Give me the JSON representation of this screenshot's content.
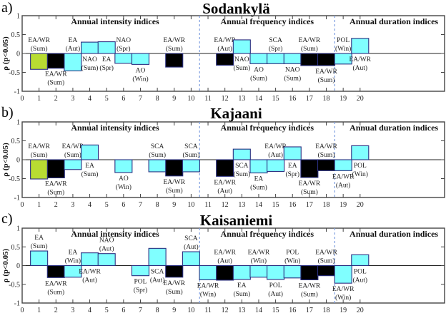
{
  "chart_data": [
    {
      "type": "bar",
      "panel_letter": "a)",
      "title": "Sodankylä",
      "xlabel": "",
      "ylabel": "ρ (p<0.05)",
      "xlim": [
        0,
        25
      ],
      "ylim": [
        -1,
        1
      ],
      "x_ticks": [
        0,
        1,
        2,
        3,
        4,
        5,
        6,
        7,
        8,
        9,
        10,
        11,
        12,
        13,
        14,
        15,
        16,
        17,
        18,
        19,
        20
      ],
      "y_ticks": [
        -1,
        -0.5,
        0,
        0.5,
        1
      ],
      "y_tick_labels": [
        "-1",
        "-0.5",
        "0",
        "0.5",
        "1"
      ],
      "section_dividers": [
        10.5,
        18.5
      ],
      "sections": [
        {
          "label": "Annual intensity indices",
          "center": 5.5
        },
        {
          "label": "Annual frequency indices",
          "center": 14.5
        },
        {
          "label": "Annual duration indices",
          "center": 22
        }
      ],
      "bars": [
        {
          "x": 1,
          "value": -0.42,
          "color": "green",
          "label": [
            "EA/WR",
            "(Sum)"
          ],
          "label_side": "above"
        },
        {
          "x": 2,
          "value": -0.39,
          "color": "black",
          "label": [
            "EA/WR",
            "(Sum)"
          ],
          "label_side": "below"
        },
        {
          "x": 3,
          "value": -0.46,
          "color": "cyan",
          "label": [
            "EA",
            "(Aut)"
          ],
          "label_side": "above"
        },
        {
          "x": 4,
          "value": 0.3,
          "color": "cyan",
          "label": [
            "NAO",
            "(Sum)"
          ],
          "label_side": "below"
        },
        {
          "x": 5,
          "value": 0.31,
          "color": "cyan",
          "label": [
            "EA",
            "(Spr)"
          ],
          "label_side": "below"
        },
        {
          "x": 6,
          "value": -0.26,
          "color": "cyan",
          "label": [
            "NAO",
            "(Spr)"
          ],
          "label_side": "above"
        },
        {
          "x": 7,
          "value": -0.29,
          "color": "cyan",
          "label": [
            "AO",
            "(Win)"
          ],
          "label_side": "below"
        },
        {
          "x": 9,
          "value": -0.36,
          "color": "black",
          "label": [
            "EA/WR",
            "(Sum)"
          ],
          "label_side": "above"
        },
        {
          "x": 12,
          "value": -0.31,
          "color": "black",
          "label": [
            "EA/WR",
            "(Aut)"
          ],
          "label_side": "above"
        },
        {
          "x": 13,
          "value": 0.36,
          "color": "cyan",
          "label": [
            "NAO",
            "(Sum)"
          ],
          "label_side": "below"
        },
        {
          "x": 14,
          "value": -0.27,
          "color": "cyan",
          "label": [
            "AO",
            "(Sum)"
          ],
          "label_side": "below"
        },
        {
          "x": 15,
          "value": -0.27,
          "color": "cyan",
          "label": [
            "SCA",
            "(Spr)"
          ],
          "label_side": "above"
        },
        {
          "x": 16,
          "value": -0.27,
          "color": "cyan",
          "label": [
            "NAO",
            "(Sum)"
          ],
          "label_side": "below"
        },
        {
          "x": 17,
          "value": -0.32,
          "color": "black",
          "label": [
            "EA/WR",
            "(Sum)"
          ],
          "label_side": "above"
        },
        {
          "x": 18,
          "value": -0.32,
          "color": "black",
          "label": [
            "EA/WR",
            "(Sum)"
          ],
          "label_side": "below"
        },
        {
          "x": 19,
          "value": -0.28,
          "color": "cyan",
          "label": [
            "POL",
            "(Win)"
          ],
          "label_side": "above"
        },
        {
          "x": 20,
          "value": 0.4,
          "color": "cyan",
          "label": [
            "EA/WR",
            "(Aut)"
          ],
          "label_side": "below"
        }
      ]
    },
    {
      "type": "bar",
      "panel_letter": "b)",
      "title": "Kajaani",
      "xlabel": "",
      "ylabel": "ρ (p<0.05)",
      "xlim": [
        0,
        25
      ],
      "ylim": [
        -1,
        1
      ],
      "x_ticks": [
        0,
        1,
        2,
        3,
        4,
        5,
        6,
        7,
        8,
        9,
        10,
        11,
        12,
        13,
        14,
        15,
        16,
        17,
        18,
        19,
        20
      ],
      "y_ticks": [
        -1,
        -0.5,
        0,
        0.5,
        1
      ],
      "y_tick_labels": [
        "-1",
        "-0.5",
        "0",
        "0.5",
        "1"
      ],
      "section_dividers": [
        10.5,
        18.5
      ],
      "sections": [
        {
          "label": "Annual intensity indices",
          "center": 5.5
        },
        {
          "label": "Annual frequency indices",
          "center": 14.5
        },
        {
          "label": "Annual duration indices",
          "center": 22
        }
      ],
      "bars": [
        {
          "x": 1,
          "value": -0.51,
          "color": "green",
          "label": [
            "EA/WR",
            "(Sum)"
          ],
          "label_side": "above"
        },
        {
          "x": 2,
          "value": -0.48,
          "color": "black",
          "label": [
            "EA/WR",
            "(Sum)"
          ],
          "label_side": "below"
        },
        {
          "x": 3,
          "value": -0.26,
          "color": "cyan",
          "label": [
            "EA/WR",
            "(Sum)"
          ],
          "label_side": "above"
        },
        {
          "x": 4,
          "value": 0.39,
          "color": "cyan",
          "label": [
            "EA",
            "(Sum)"
          ],
          "label_side": "below"
        },
        {
          "x": 6,
          "value": -0.34,
          "color": "cyan",
          "label": [
            "AO",
            "(Win)"
          ],
          "label_side": "below"
        },
        {
          "x": 8,
          "value": -0.32,
          "color": "cyan",
          "label": [
            "SCA",
            "(Sum)"
          ],
          "label_side": "above"
        },
        {
          "x": 9,
          "value": -0.43,
          "color": "black",
          "label": [
            "EA/WR",
            "(Sum)"
          ],
          "label_side": "below"
        },
        {
          "x": 10,
          "value": -0.32,
          "color": "cyan",
          "label": [
            "SCA",
            "(Sum)"
          ],
          "label_side": "above"
        },
        {
          "x": 12,
          "value": -0.44,
          "color": "black",
          "label": [
            "EA/WR",
            "(Aut)"
          ],
          "label_side": "below"
        },
        {
          "x": 13,
          "value": 0.28,
          "color": "cyan",
          "label": [
            "SCA",
            "(Sum)"
          ],
          "label_side": "below"
        },
        {
          "x": 14,
          "value": -0.35,
          "color": "cyan",
          "label": [
            "EA",
            "(Sum)"
          ],
          "label_side": "below"
        },
        {
          "x": 15,
          "value": -0.31,
          "color": "cyan",
          "label": [
            "EA/WR",
            "(Aut)"
          ],
          "label_side": "above"
        },
        {
          "x": 16,
          "value": 0.34,
          "color": "cyan",
          "label": [
            "EA",
            "(Spr)"
          ],
          "label_side": "below"
        },
        {
          "x": 17,
          "value": -0.47,
          "color": "black",
          "label": [
            "EA/WR",
            "(Sum)"
          ],
          "label_side": "below"
        },
        {
          "x": 18,
          "value": -0.29,
          "color": "black",
          "label": [
            "EA/WR",
            "(Sum)"
          ],
          "label_side": "above"
        },
        {
          "x": 19,
          "value": -0.29,
          "color": "cyan",
          "label": [
            "EA/WR",
            "(Aut)"
          ],
          "label_side": "below"
        },
        {
          "x": 20,
          "value": 0.37,
          "color": "cyan",
          "label": [
            "POL",
            "(Win)"
          ],
          "label_side": "below"
        }
      ]
    },
    {
      "type": "bar",
      "panel_letter": "c)",
      "title": "Kaisaniemi",
      "xlabel": "",
      "ylabel": "ρ (p<0.05)",
      "xlim": [
        0,
        25
      ],
      "ylim": [
        -1,
        1
      ],
      "x_ticks": [
        0,
        1,
        2,
        3,
        4,
        5,
        6,
        7,
        8,
        9,
        10,
        11,
        12,
        13,
        14,
        15,
        16,
        17,
        18,
        19,
        20
      ],
      "y_ticks": [
        -1,
        -0.5,
        0,
        0.5,
        1
      ],
      "y_tick_labels": [
        "-1",
        "-0.5",
        "0",
        "0.5",
        "1"
      ],
      "section_dividers": [
        10.5,
        18.5
      ],
      "sections": [
        {
          "label": "Annual intensity indices",
          "center": 5.5
        },
        {
          "label": "Annual frequency indices",
          "center": 14.5
        },
        {
          "label": "Annual duration indices",
          "center": 22
        }
      ],
      "bars": [
        {
          "x": 1,
          "value": 0.39,
          "color": "cyan",
          "label": [
            "EA",
            "(Sum)"
          ],
          "label_side": "above"
        },
        {
          "x": 2,
          "value": -0.32,
          "color": "black",
          "label": [
            "EA/WR",
            "(Sum)"
          ],
          "label_side": "below"
        },
        {
          "x": 3,
          "value": -0.31,
          "color": "cyan",
          "label": [
            "EA",
            "(Win)"
          ],
          "label_side": "above"
        },
        {
          "x": 4,
          "value": 0.34,
          "color": "cyan",
          "label": [
            "EA/WR",
            "(Aut)"
          ],
          "label_side": "below"
        },
        {
          "x": 5,
          "value": 0.32,
          "color": "cyan",
          "label": [
            "NAO",
            "(Aut)"
          ],
          "label_side": "above"
        },
        {
          "x": 7,
          "value": -0.27,
          "color": "cyan",
          "label": [
            "POL",
            "(Spr)"
          ],
          "label_side": "below"
        },
        {
          "x": 8,
          "value": 0.46,
          "color": "cyan",
          "label": [
            "SCA",
            "(Aut)"
          ],
          "label_side": "below"
        },
        {
          "x": 9,
          "value": -0.31,
          "color": "black",
          "label": [
            "EA/WR",
            "(Sum)"
          ],
          "label_side": "below"
        },
        {
          "x": 10,
          "value": 0.37,
          "color": "cyan",
          "label": [
            "SCA",
            "(Aut)"
          ],
          "label_side": "above"
        },
        {
          "x": 11,
          "value": -0.38,
          "color": "cyan",
          "label": [
            "EA/WR",
            "(Win)"
          ],
          "label_side": "below"
        },
        {
          "x": 12,
          "value": -0.39,
          "color": "black",
          "label": [
            "EA/WR",
            "(Aut)"
          ],
          "label_side": "above"
        },
        {
          "x": 13,
          "value": -0.37,
          "color": "cyan",
          "label": [
            "EA",
            "(Sum)"
          ],
          "label_side": "below"
        },
        {
          "x": 14,
          "value": -0.31,
          "color": "cyan",
          "label": [
            "EA/WR",
            "(Win)"
          ],
          "label_side": "above"
        },
        {
          "x": 15,
          "value": -0.37,
          "color": "cyan",
          "label": [
            "POL",
            "(Aut)"
          ],
          "label_side": "below"
        },
        {
          "x": 16,
          "value": -0.33,
          "color": "cyan",
          "label": [
            "POL",
            "(Win)"
          ],
          "label_side": "above"
        },
        {
          "x": 17,
          "value": -0.38,
          "color": "black",
          "label": [
            "EA/WR",
            "(Sum)"
          ],
          "label_side": "below"
        },
        {
          "x": 18,
          "value": -0.27,
          "color": "black",
          "label": [
            "EA/WR",
            "(Sum)"
          ],
          "label_side": "above"
        },
        {
          "x": 19,
          "value": -0.47,
          "color": "cyan",
          "label": [
            "EA/WR",
            "(Win)"
          ],
          "label_side": "below"
        },
        {
          "x": 20,
          "value": 0.29,
          "color": "cyan",
          "label": [
            "POL",
            "(Aut)"
          ],
          "label_side": "below"
        }
      ]
    }
  ],
  "colors": {
    "green": "#b8dc32",
    "black": "#000000",
    "cyan": "#80ffff",
    "bar_edge": "#2a2f80",
    "divider": "#7f9ee0",
    "axis": "#444444"
  }
}
